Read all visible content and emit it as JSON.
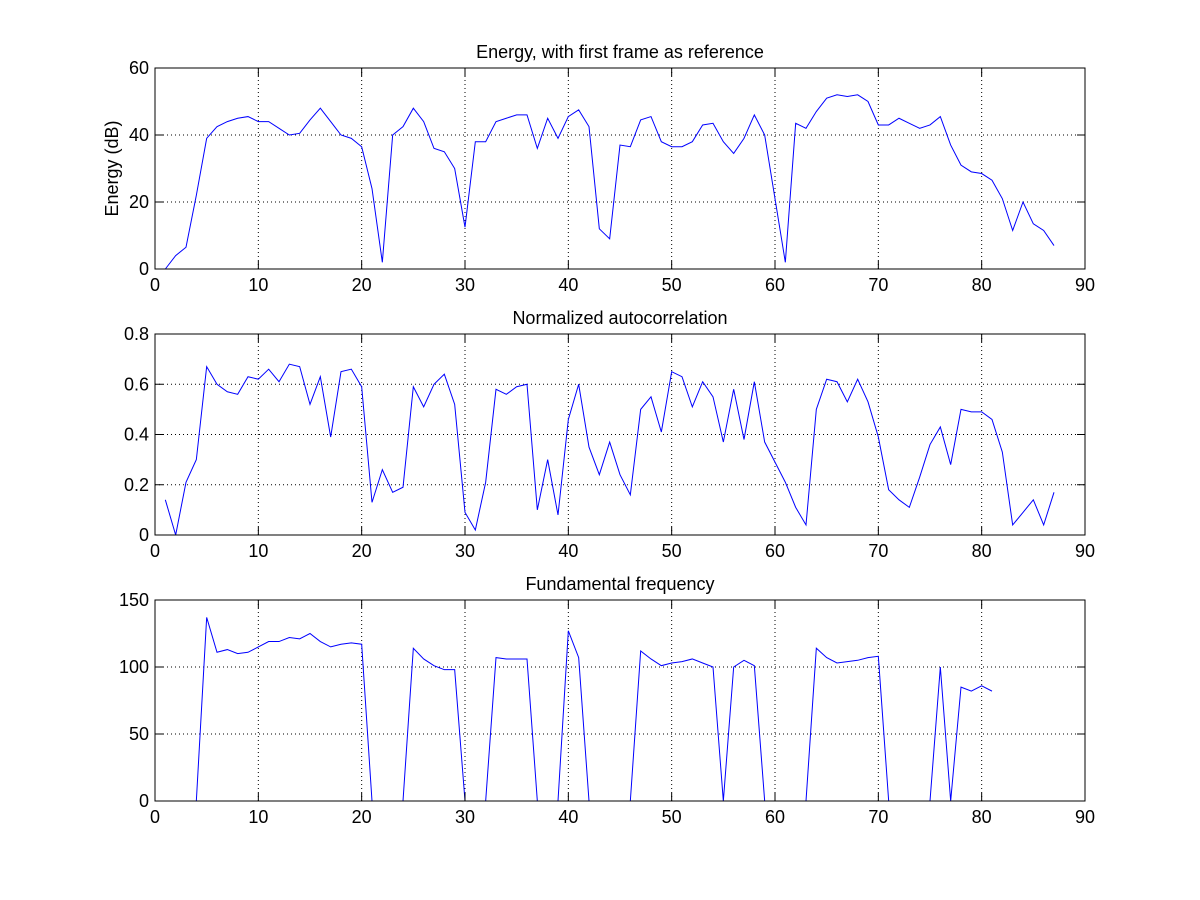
{
  "figure": {
    "background": "#ffffff"
  },
  "chart_data": [
    {
      "type": "line",
      "title": "Energy, with first frame as reference",
      "xlabel": "",
      "ylabel": "Energy (dB)",
      "xlim": [
        0,
        90
      ],
      "ylim": [
        0,
        60
      ],
      "xticks": [
        0,
        10,
        20,
        30,
        40,
        50,
        60,
        70,
        80,
        90
      ],
      "yticks": [
        0,
        20,
        40,
        60
      ],
      "grid": true,
      "line_color": "#0000ff",
      "x": [
        1,
        2,
        3,
        4,
        5,
        6,
        7,
        8,
        9,
        10,
        11,
        12,
        13,
        14,
        15,
        16,
        17,
        18,
        19,
        20,
        21,
        22,
        23,
        24,
        25,
        26,
        27,
        28,
        29,
        30,
        31,
        32,
        33,
        34,
        35,
        36,
        37,
        38,
        39,
        40,
        41,
        42,
        43,
        44,
        45,
        46,
        47,
        48,
        49,
        50,
        51,
        52,
        53,
        54,
        55,
        56,
        57,
        58,
        59,
        60,
        61,
        62,
        63,
        64,
        65,
        66,
        67,
        68,
        69,
        70,
        71,
        72,
        73,
        74,
        75,
        76,
        77,
        78,
        79,
        80,
        81,
        82,
        83,
        84,
        85,
        86,
        87
      ],
      "y": [
        0,
        4,
        6.5,
        22,
        39,
        42.5,
        44,
        45,
        45.5,
        44,
        44,
        42,
        40,
        40.5,
        44.5,
        48,
        44,
        40,
        39,
        36.5,
        24,
        2,
        40,
        42.5,
        48,
        44,
        36,
        35,
        30,
        12.5,
        38,
        38,
        44,
        45,
        46,
        46,
        36,
        45,
        39,
        45.5,
        47.5,
        42.5,
        12,
        9,
        37,
        36.5,
        44.5,
        45.5,
        38,
        36.5,
        36.5,
        38,
        43,
        43.5,
        38,
        34.5,
        39,
        46,
        40,
        21,
        2,
        43.5,
        42,
        47,
        51,
        52,
        51.5,
        52,
        50,
        43,
        43,
        45,
        43.5,
        42,
        43,
        45.5,
        37,
        31,
        29,
        28.5,
        26.5,
        21,
        11.5,
        20,
        13.5,
        11.5,
        7
      ]
    },
    {
      "type": "line",
      "title": "Normalized autocorrelation",
      "xlabel": "",
      "ylabel": "",
      "xlim": [
        0,
        90
      ],
      "ylim": [
        0,
        0.8
      ],
      "xticks": [
        0,
        10,
        20,
        30,
        40,
        50,
        60,
        70,
        80,
        90
      ],
      "yticks": [
        0,
        0.2,
        0.4,
        0.6,
        0.8
      ],
      "grid": true,
      "line_color": "#0000ff",
      "x": [
        1,
        2,
        3,
        4,
        5,
        6,
        7,
        8,
        9,
        10,
        11,
        12,
        13,
        14,
        15,
        16,
        17,
        18,
        19,
        20,
        21,
        22,
        23,
        24,
        25,
        26,
        27,
        28,
        29,
        30,
        31,
        32,
        33,
        34,
        35,
        36,
        37,
        38,
        39,
        40,
        41,
        42,
        43,
        44,
        45,
        46,
        47,
        48,
        49,
        50,
        51,
        52,
        53,
        54,
        55,
        56,
        57,
        58,
        59,
        60,
        61,
        62,
        63,
        64,
        65,
        66,
        67,
        68,
        69,
        70,
        71,
        72,
        73,
        74,
        75,
        76,
        77,
        78,
        79,
        80,
        81,
        82,
        83,
        84,
        85,
        86,
        87
      ],
      "y": [
        0.14,
        0,
        0.21,
        0.3,
        0.67,
        0.6,
        0.57,
        0.56,
        0.63,
        0.62,
        0.66,
        0.61,
        0.68,
        0.67,
        0.52,
        0.63,
        0.39,
        0.65,
        0.66,
        0.59,
        0.13,
        0.26,
        0.17,
        0.19,
        0.59,
        0.51,
        0.6,
        0.64,
        0.52,
        0.09,
        0.02,
        0.21,
        0.58,
        0.56,
        0.59,
        0.6,
        0.1,
        0.3,
        0.08,
        0.46,
        0.6,
        0.35,
        0.24,
        0.37,
        0.24,
        0.16,
        0.5,
        0.55,
        0.41,
        0.65,
        0.63,
        0.51,
        0.61,
        0.55,
        0.37,
        0.58,
        0.38,
        0.61,
        0.37,
        0.29,
        0.21,
        0.11,
        0.04,
        0.5,
        0.62,
        0.61,
        0.53,
        0.62,
        0.53,
        0.39,
        0.18,
        0.14,
        0.11,
        0.23,
        0.36,
        0.43,
        0.28,
        0.5,
        0.49,
        0.49,
        0.46,
        0.33,
        0.04,
        0.09,
        0.14,
        0.04,
        0.17
      ]
    },
    {
      "type": "line",
      "title": "Fundamental frequency",
      "xlabel": "",
      "ylabel": "",
      "xlim": [
        0,
        90
      ],
      "ylim": [
        0,
        150
      ],
      "xticks": [
        0,
        10,
        20,
        30,
        40,
        50,
        60,
        70,
        80,
        90
      ],
      "yticks": [
        0,
        50,
        100,
        150
      ],
      "grid": true,
      "line_color": "#0000ff",
      "note_nulls": "unvoiced frames are null (breaks in the line)",
      "x": [
        1,
        2,
        3,
        4,
        5,
        6,
        7,
        8,
        9,
        10,
        11,
        12,
        13,
        14,
        15,
        16,
        17,
        18,
        19,
        20,
        21,
        22,
        23,
        24,
        25,
        26,
        27,
        28,
        29,
        30,
        31,
        32,
        33,
        34,
        35,
        36,
        37,
        38,
        39,
        40,
        41,
        42,
        43,
        44,
        45,
        46,
        47,
        48,
        49,
        50,
        51,
        52,
        53,
        54,
        55,
        56,
        57,
        58,
        59,
        60,
        61,
        62,
        63,
        64,
        65,
        66,
        67,
        68,
        69,
        70,
        71,
        72,
        73,
        74,
        75,
        76,
        77,
        78,
        79,
        80,
        81
      ],
      "y": [
        null,
        null,
        null,
        0,
        137,
        111,
        113,
        110,
        111,
        115,
        119,
        119,
        122,
        121,
        125,
        119,
        115,
        117,
        118,
        117,
        0,
        null,
        null,
        0,
        114,
        106,
        101,
        98,
        98,
        0,
        null,
        0,
        107,
        106,
        106,
        106,
        0,
        null,
        0,
        127,
        107,
        0,
        null,
        null,
        null,
        0,
        112,
        106,
        101,
        103,
        104,
        106,
        103,
        100,
        0,
        100,
        105,
        101,
        0,
        null,
        null,
        null,
        0,
        114,
        107,
        103,
        104,
        105,
        107,
        108,
        0,
        null,
        null,
        null,
        0,
        100,
        0,
        85,
        82,
        86,
        82
      ]
    }
  ]
}
